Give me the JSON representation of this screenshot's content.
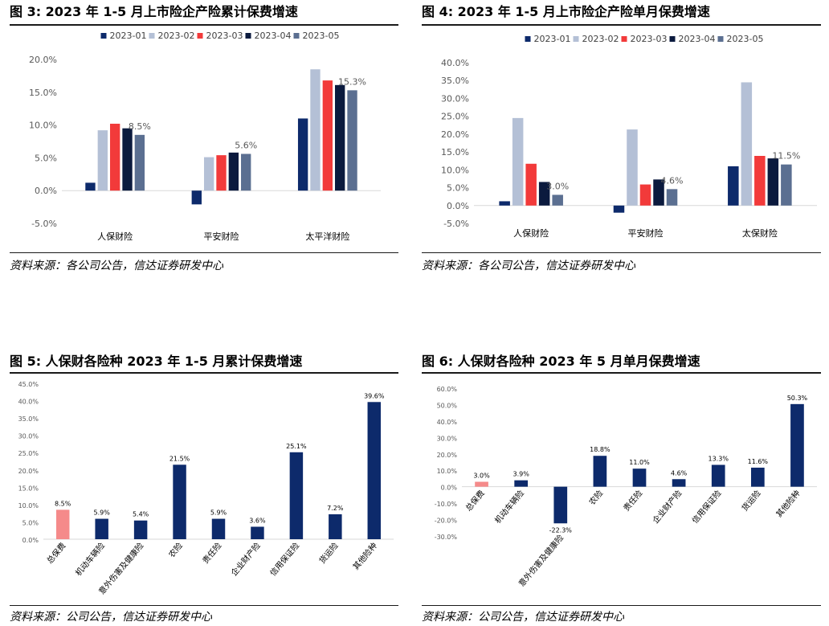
{
  "colors": {
    "2023-01": "#0d2a6b",
    "2023-02": "#b4c0d6",
    "2023-03": "#f23a3a",
    "2023-04": "#0b1a3e",
    "2023-05": "#5b6f91",
    "navy": "#0d2a6b",
    "pink": "#f58a8a"
  },
  "panels": [
    {
      "id": "fig3",
      "title": "图 3:  2023 年 1-5 月上市险企产险累计保费增速",
      "source": "资料来源：各公司公告，信达证券研发中心",
      "chart_data": {
        "type": "bar",
        "categories": [
          "人保财险",
          "平安财险",
          "太平洋财险"
        ],
        "series": [
          {
            "name": "2023-01",
            "values": [
              1.2,
              -2.1,
              11.0
            ]
          },
          {
            "name": "2023-02",
            "values": [
              9.2,
              5.1,
              18.5
            ]
          },
          {
            "name": "2023-03",
            "values": [
              10.2,
              5.4,
              16.8
            ]
          },
          {
            "name": "2023-04",
            "values": [
              9.5,
              5.8,
              16.1
            ]
          },
          {
            "name": "2023-05",
            "values": [
              8.5,
              5.6,
              15.3
            ]
          }
        ],
        "data_labels": {
          "series": "2023-05",
          "labels": [
            "8.5%",
            "5.6%",
            "15.3%"
          ]
        },
        "yticks": [
          "-5.0%",
          "0.0%",
          "5.0%",
          "10.0%",
          "15.0%",
          "20.0%"
        ],
        "ylim": [
          -5,
          20
        ],
        "legend": "top"
      }
    },
    {
      "id": "fig4",
      "title": "图 4:  2023 年 1-5 月上市险企产险单月保费增速",
      "source": "资料来源：各公司公告，信达证券研发中心",
      "chart_data": {
        "type": "bar",
        "categories": [
          "人保财险",
          "平安财险",
          "太保财险"
        ],
        "series": [
          {
            "name": "2023-01",
            "values": [
              1.2,
              -2.0,
              11.0
            ]
          },
          {
            "name": "2023-02",
            "values": [
              24.5,
              21.3,
              34.5
            ]
          },
          {
            "name": "2023-03",
            "values": [
              11.7,
              5.9,
              13.9
            ]
          },
          {
            "name": "2023-04",
            "values": [
              6.6,
              7.3,
              13.2
            ]
          },
          {
            "name": "2023-05",
            "values": [
              3.0,
              4.6,
              11.5
            ]
          }
        ],
        "data_labels": {
          "series": "2023-05",
          "labels": [
            "3.0%",
            "4.6%",
            "11.5%"
          ]
        },
        "yticks": [
          "-5.0%",
          "0.0%",
          "5.0%",
          "10.0%",
          "15.0%",
          "20.0%",
          "25.0%",
          "30.0%",
          "35.0%",
          "40.0%"
        ],
        "ylim": [
          -5,
          40
        ],
        "legend": "top"
      }
    },
    {
      "id": "fig5",
      "title": "图 5:  人保财各险种 2023 年 1-5 月累计保费增速",
      "source": "资料来源：公司公告，信达证券研发中心",
      "chart_data": {
        "type": "bar",
        "categories": [
          "总保费",
          "机动车辆险",
          "意外伤害及健康险",
          "农险",
          "责任险",
          "企业财产险",
          "信用保证险",
          "货运险",
          "其他险种"
        ],
        "values": [
          8.5,
          5.9,
          5.4,
          21.5,
          5.9,
          3.6,
          25.1,
          7.2,
          39.6
        ],
        "labels": [
          "8.5%",
          "5.9%",
          "5.4%",
          "21.5%",
          "5.9%",
          "3.6%",
          "25.1%",
          "7.2%",
          "39.6%"
        ],
        "highlight_index": 0,
        "yticks": [
          "0.0%",
          "5.0%",
          "10.0%",
          "15.0%",
          "20.0%",
          "25.0%",
          "30.0%",
          "35.0%",
          "40.0%",
          "45.0%"
        ],
        "ylim": [
          0,
          45
        ]
      }
    },
    {
      "id": "fig6",
      "title": "图 6:  人保财各险种 2023 年 5 月单月保费增速",
      "source": "资料来源：公司公告，信达证券研发中心",
      "chart_data": {
        "type": "bar",
        "categories": [
          "总保费",
          "机动车辆险",
          "意外伤害及健康险",
          "农险",
          "责任险",
          "企业财产险",
          "信用保证险",
          "货运险",
          "其他险种"
        ],
        "values": [
          3.0,
          3.9,
          -22.3,
          18.8,
          11.0,
          4.6,
          13.3,
          11.6,
          50.3
        ],
        "labels": [
          "3.0%",
          "3.9%",
          "-22.3%",
          "18.8%",
          "11.0%",
          "4.6%",
          "13.3%",
          "11.6%",
          "50.3%"
        ],
        "highlight_index": 0,
        "yticks": [
          "-30.0%",
          "-20.0%",
          "-10.0%",
          "0.0%",
          "10.0%",
          "20.0%",
          "30.0%",
          "40.0%",
          "50.0%",
          "60.0%"
        ],
        "ylim": [
          -30,
          60
        ]
      }
    }
  ]
}
